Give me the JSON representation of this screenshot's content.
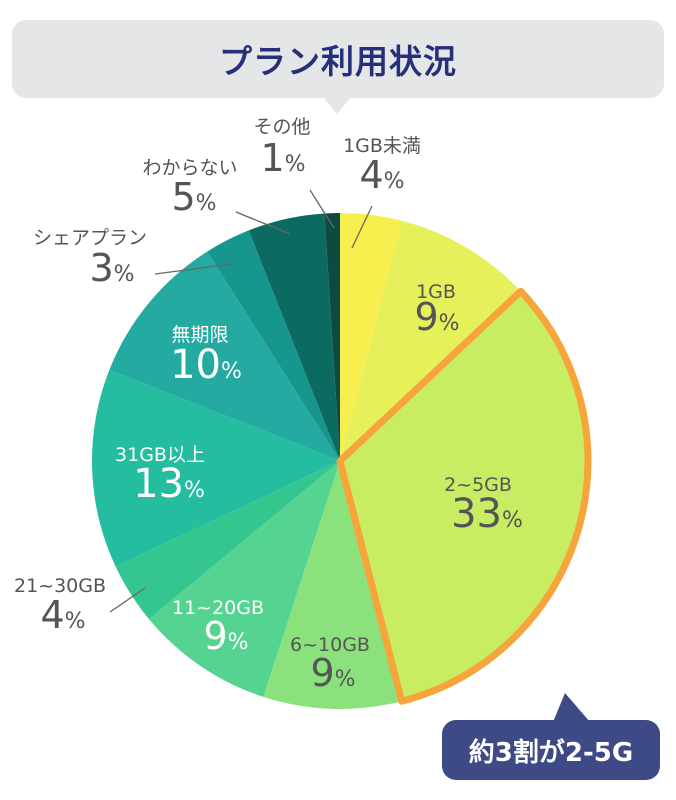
{
  "title": "プラン利用状況",
  "chart_data": {
    "type": "pie",
    "value_unit": "%",
    "slices": [
      {
        "label": "1GB未満",
        "value": 4,
        "color": "#f7ef4e"
      },
      {
        "label": "1GB",
        "value": 9,
        "color": "#e6f05a"
      },
      {
        "label": "2~5GB",
        "value": 33,
        "color": "#c8ec62",
        "highlight_color": "#f7a43a"
      },
      {
        "label": "6~10GB",
        "value": 9,
        "color": "#8be27d"
      },
      {
        "label": "11~20GB",
        "value": 9,
        "color": "#55d391"
      },
      {
        "label": "21~30GB",
        "value": 4,
        "color": "#35c68f"
      },
      {
        "label": "31GB以上",
        "value": 13,
        "color": "#24bd9f"
      },
      {
        "label": "無期限",
        "value": 10,
        "color": "#24aaa0"
      },
      {
        "label": "シェアプラン",
        "value": 3,
        "color": "#17968d"
      },
      {
        "label": "わからない",
        "value": 5,
        "color": "#0b6b60"
      },
      {
        "label": "その他",
        "value": 1,
        "color": "#0e4a42"
      }
    ],
    "highlighted": "2~5GB"
  },
  "callout": "約3割が2-5G"
}
